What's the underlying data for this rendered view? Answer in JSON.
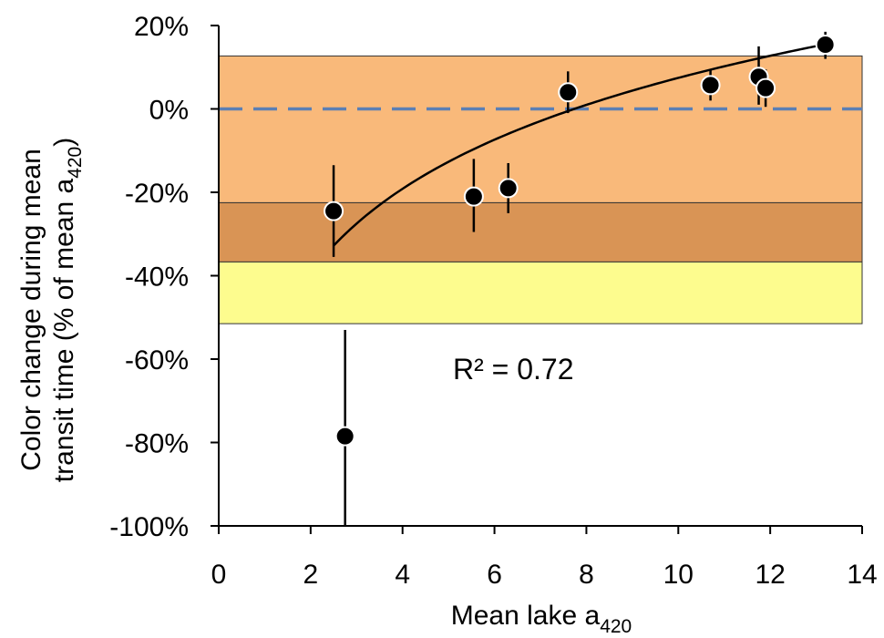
{
  "chart_data": {
    "type": "scatter",
    "xlabel": "Mean lake a",
    "xlabel_sub": "420",
    "ylabel_line1": "Color change during mean",
    "ylabel_line2": "transit time (% of mean a",
    "ylabel_sub": "420",
    "ylabel_close": ")",
    "xlim": [
      0,
      14
    ],
    "ylim": [
      -100,
      20
    ],
    "x_ticks": [
      0,
      2,
      4,
      6,
      8,
      10,
      12,
      14
    ],
    "y_ticks": [
      {
        "value": 20,
        "label": "20%"
      },
      {
        "value": 0,
        "label": "0%"
      },
      {
        "value": -20,
        "label": "-20%"
      },
      {
        "value": -40,
        "label": "-40%"
      },
      {
        "value": -60,
        "label": "-60%"
      },
      {
        "value": -80,
        "label": "-80%"
      },
      {
        "value": -100,
        "label": "-100%"
      }
    ],
    "bands": [
      {
        "y_from": -22.5,
        "y_to": 12.7,
        "color": "#f9b97a"
      },
      {
        "y_from": -36.7,
        "y_to": -22.5,
        "color": "#d99455"
      },
      {
        "y_from": -51.5,
        "y_to": -36.7,
        "color": "#fdfc8e"
      }
    ],
    "reference_line": {
      "y": 0,
      "color": "#5b7fb4",
      "style": "dashed"
    },
    "points": [
      {
        "x": 2.5,
        "y": -24.5,
        "err_low": -35.5,
        "err_high": -13.5
      },
      {
        "x": 2.75,
        "y": -78.5,
        "err_low": -100,
        "err_high": -53
      },
      {
        "x": 5.55,
        "y": -21,
        "err_low": -29.5,
        "err_high": -12
      },
      {
        "x": 6.3,
        "y": -19,
        "err_low": -25,
        "err_high": -13
      },
      {
        "x": 7.6,
        "y": 4,
        "err_low": -1,
        "err_high": 9
      },
      {
        "x": 10.7,
        "y": 5.7,
        "err_low": 2,
        "err_high": 9.5
      },
      {
        "x": 11.75,
        "y": 7.7,
        "err_low": 1,
        "err_high": 15
      },
      {
        "x": 11.9,
        "y": 5,
        "err_low": 0.5,
        "err_high": 9.5
      },
      {
        "x": 13.2,
        "y": 15.4,
        "err_low": 12,
        "err_high": 18.5
      }
    ],
    "trendline": {
      "type": "logarithmic",
      "a": 29.03,
      "b": -59.4,
      "x_from": 2.5,
      "x_to": 13.2
    },
    "annotation": "R² = 0.72",
    "grid": false,
    "legend": "none"
  }
}
